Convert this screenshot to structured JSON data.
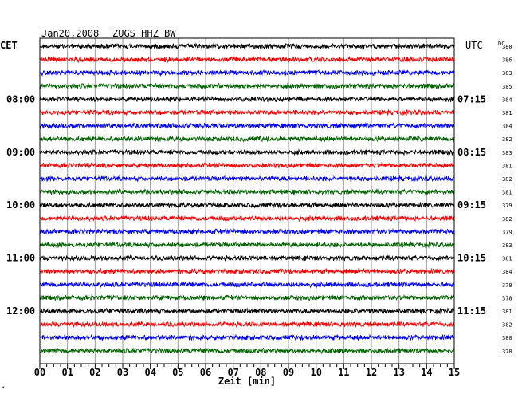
{
  "header": {
    "date": "Jan20,2008",
    "station": "ZUGS HHZ BW",
    "left_zone": "CET",
    "right_zone": "UTC",
    "dc_label": "DC"
  },
  "x_axis": {
    "label": "Zeit [min]",
    "ticks": [
      "00",
      "01",
      "02",
      "03",
      "04",
      "05",
      "06",
      "07",
      "08",
      "09",
      "10",
      "11",
      "12",
      "13",
      "14",
      "15"
    ]
  },
  "hour_labels_left": [
    "08:00",
    "09:00",
    "10:00",
    "11:00",
    "12:00"
  ],
  "hour_labels_right": [
    "07:15",
    "08:15",
    "09:15",
    "10:15",
    "11:15"
  ],
  "trace_colors": [
    "#000000",
    "#ff0000",
    "#0000ff",
    "#006400"
  ],
  "dc_values": [
    "380",
    "386",
    "383",
    "385",
    "384",
    "381",
    "384",
    "382",
    "383",
    "381",
    "382",
    "381",
    "379",
    "382",
    "379",
    "383",
    "381",
    "384",
    "378",
    "378",
    "381",
    "382",
    "380",
    "378"
  ],
  "corner_mark": "*"
}
